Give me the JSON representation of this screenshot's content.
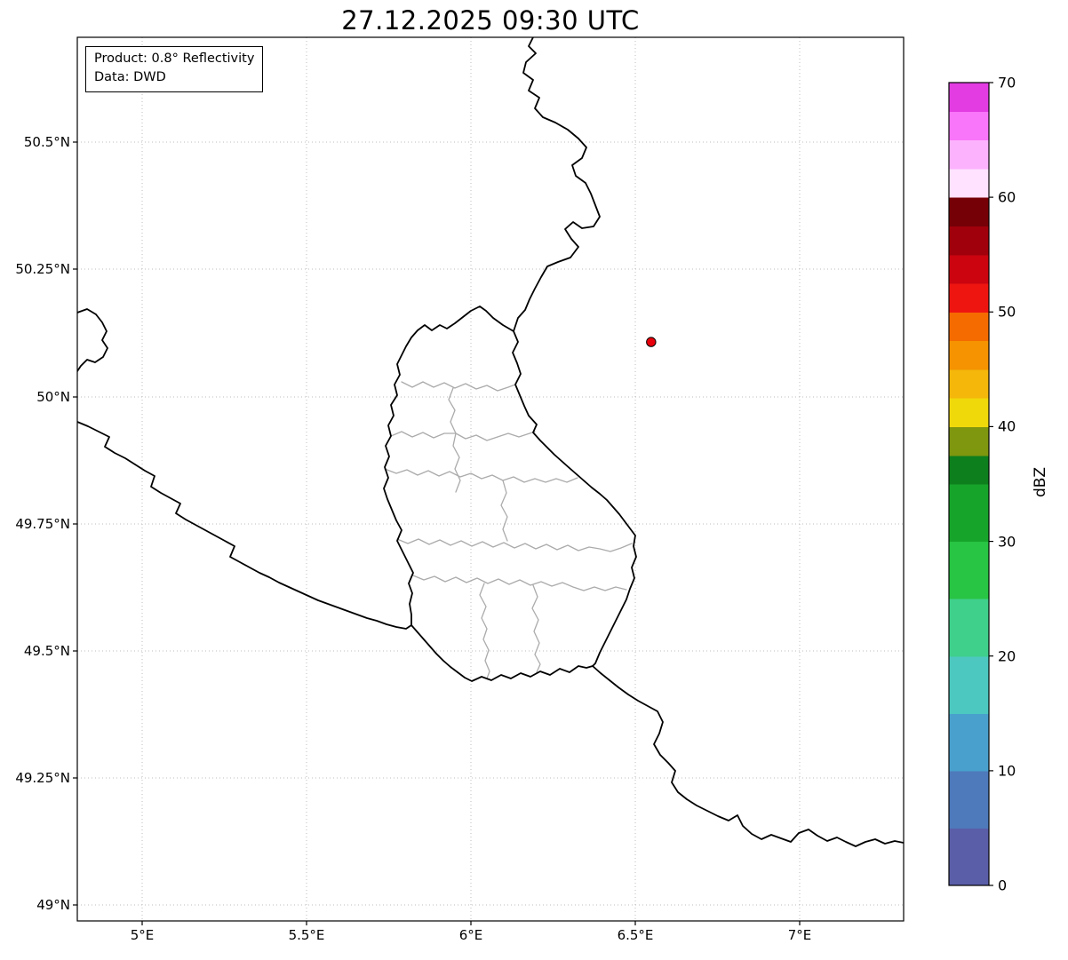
{
  "figure": {
    "title": "27.12.2025 09:30 UTC",
    "info_box": {
      "product_line": "Product: 0.8° Reflectivity",
      "data_line": "Data: DWD"
    }
  },
  "axes": {
    "x_ticks": [
      "5°E",
      "5.5°E",
      "6°E",
      "6.5°E",
      "7°E"
    ],
    "y_ticks": [
      "50.5°N",
      "50.25°N",
      "50°N",
      "49.75°N",
      "49.5°N",
      "49.25°N",
      "49°N"
    ]
  },
  "marker": {
    "lon": 6.55,
    "lat": 50.11,
    "color": "#e8000b",
    "edge_color": "#000000"
  },
  "colorbar": {
    "label": "dBZ",
    "min": 0,
    "max": 70,
    "ticks": [
      "0",
      "10",
      "20",
      "30",
      "40",
      "50",
      "60",
      "70"
    ],
    "segments": [
      {
        "from": 0,
        "to": 5,
        "color": "#5a5ea8"
      },
      {
        "from": 5,
        "to": 10,
        "color": "#4e79ba"
      },
      {
        "from": 10,
        "to": 15,
        "color": "#49a0cc"
      },
      {
        "from": 15,
        "to": 20,
        "color": "#4cc8c0"
      },
      {
        "from": 20,
        "to": 25,
        "color": "#3fd08c"
      },
      {
        "from": 25,
        "to": 30,
        "color": "#28c443"
      },
      {
        "from": 30,
        "to": 35,
        "color": "#17a42b"
      },
      {
        "from": 35,
        "to": 37.5,
        "color": "#0d7f1d"
      },
      {
        "from": 37.5,
        "to": 40,
        "color": "#7f960f"
      },
      {
        "from": 40,
        "to": 42.5,
        "color": "#f0d90a"
      },
      {
        "from": 42.5,
        "to": 45,
        "color": "#f4b70a"
      },
      {
        "from": 45,
        "to": 47.5,
        "color": "#f59300"
      },
      {
        "from": 47.5,
        "to": 50,
        "color": "#f56b00"
      },
      {
        "from": 50,
        "to": 52.5,
        "color": "#ee1511"
      },
      {
        "from": 52.5,
        "to": 55,
        "color": "#cb0410"
      },
      {
        "from": 55,
        "to": 57.5,
        "color": "#a0000b"
      },
      {
        "from": 57.5,
        "to": 60,
        "color": "#750006"
      },
      {
        "from": 60,
        "to": 62.5,
        "color": "#ffe2ff"
      },
      {
        "from": 62.5,
        "to": 65,
        "color": "#fdb2fd"
      },
      {
        "from": 65,
        "to": 67.5,
        "color": "#f975f9"
      },
      {
        "from": 67.5,
        "to": 70,
        "color": "#e23ce2"
      }
    ]
  },
  "chart_data": {
    "type": "scatter",
    "title": "27.12.2025 09:30 UTC",
    "series": [
      {
        "name": "radar site marker",
        "points": [
          {
            "lon": 6.55,
            "lat": 50.11
          }
        ]
      }
    ],
    "xlabel": "",
    "ylabel": "",
    "x_tick_labels": [
      "5°E",
      "5.5°E",
      "6°E",
      "6.5°E",
      "7°E"
    ],
    "y_tick_labels": [
      "50.5°N",
      "50.25°N",
      "50°N",
      "49.75°N",
      "49.5°N",
      "49.25°N",
      "49°N"
    ],
    "xlim": [
      4.8,
      7.32
    ],
    "ylim": [
      48.97,
      50.71
    ],
    "grid": true,
    "legend_position": "none",
    "colorbar": {
      "label": "dBZ",
      "range": [
        0,
        70
      ],
      "ticks": [
        0,
        10,
        20,
        30,
        40,
        50,
        60,
        70
      ]
    }
  }
}
